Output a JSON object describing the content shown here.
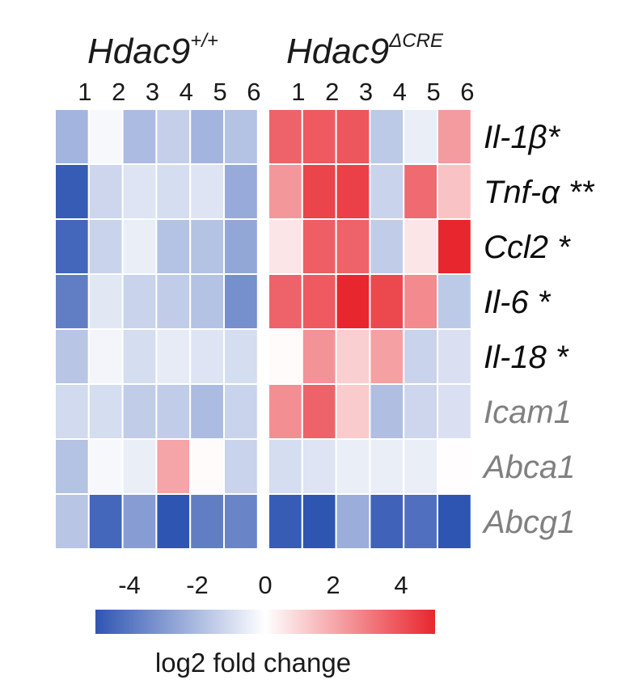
{
  "chart_data": {
    "type": "heatmap",
    "groups": [
      {
        "name": "Hdac9",
        "superscript": "+/+",
        "columns": [
          "1",
          "2",
          "3",
          "4",
          "5",
          "6"
        ]
      },
      {
        "name": "Hdac9",
        "superscript": "ΔCRE",
        "columns": [
          "1",
          "2",
          "3",
          "4",
          "5",
          "6"
        ]
      }
    ],
    "rows": [
      {
        "label": "Il-1β*",
        "significant": true
      },
      {
        "label": "Tnf-α **",
        "significant": true
      },
      {
        "label": "Ccl2 *",
        "significant": true
      },
      {
        "label": "Il-6 *",
        "significant": true
      },
      {
        "label": "Il-18 *",
        "significant": true
      },
      {
        "label": "Icam1",
        "significant": false
      },
      {
        "label": "Abca1",
        "significant": false
      },
      {
        "label": "Abcg1",
        "significant": false
      }
    ],
    "values": [
      [
        -2.2,
        -0.2,
        -2.0,
        -1.4,
        -2.2,
        -1.8,
        3.6,
        3.8,
        3.9,
        -1.6,
        -0.5,
        2.3
      ],
      [
        -4.8,
        -1.2,
        -0.8,
        -1.0,
        -0.8,
        -2.5,
        2.4,
        4.3,
        4.4,
        -1.3,
        3.4,
        1.4
      ],
      [
        -4.5,
        -1.3,
        -0.5,
        -1.8,
        -1.8,
        -2.6,
        0.6,
        3.7,
        3.6,
        -1.5,
        0.6,
        5.0
      ],
      [
        -3.8,
        -0.7,
        -1.3,
        -1.5,
        -1.8,
        -3.3,
        3.6,
        3.8,
        5.0,
        4.2,
        2.7,
        -1.6
      ],
      [
        -1.7,
        -0.3,
        -1.0,
        -0.6,
        -0.8,
        -1.0,
        0.1,
        2.5,
        1.1,
        2.2,
        -1.3,
        -0.9
      ],
      [
        -1.1,
        -1.0,
        -1.5,
        -1.5,
        -2.0,
        -1.3,
        2.6,
        3.6,
        1.2,
        -1.9,
        -1.2,
        -0.9
      ],
      [
        -1.8,
        -0.2,
        -0.5,
        2.1,
        0.1,
        -1.3,
        -1.0,
        -0.8,
        -0.5,
        -0.5,
        -0.5,
        0.05
      ],
      [
        -1.7,
        -4.5,
        -2.9,
        -5.0,
        -3.8,
        -3.6,
        -4.8,
        -5.2,
        -2.4,
        -4.6,
        -4.2,
        -5.0
      ]
    ],
    "colorbar": {
      "title": "log2 fold change",
      "ticks": [
        -4,
        -2,
        0,
        2,
        4
      ],
      "range": [
        -5,
        5
      ],
      "low_color": "#2f55b3",
      "mid_color": "#ffffff",
      "high_color": "#e8262e"
    },
    "row_annotation_colors": {
      "significant": "#0d0d0d",
      "nonsignificant": "#808080"
    }
  }
}
